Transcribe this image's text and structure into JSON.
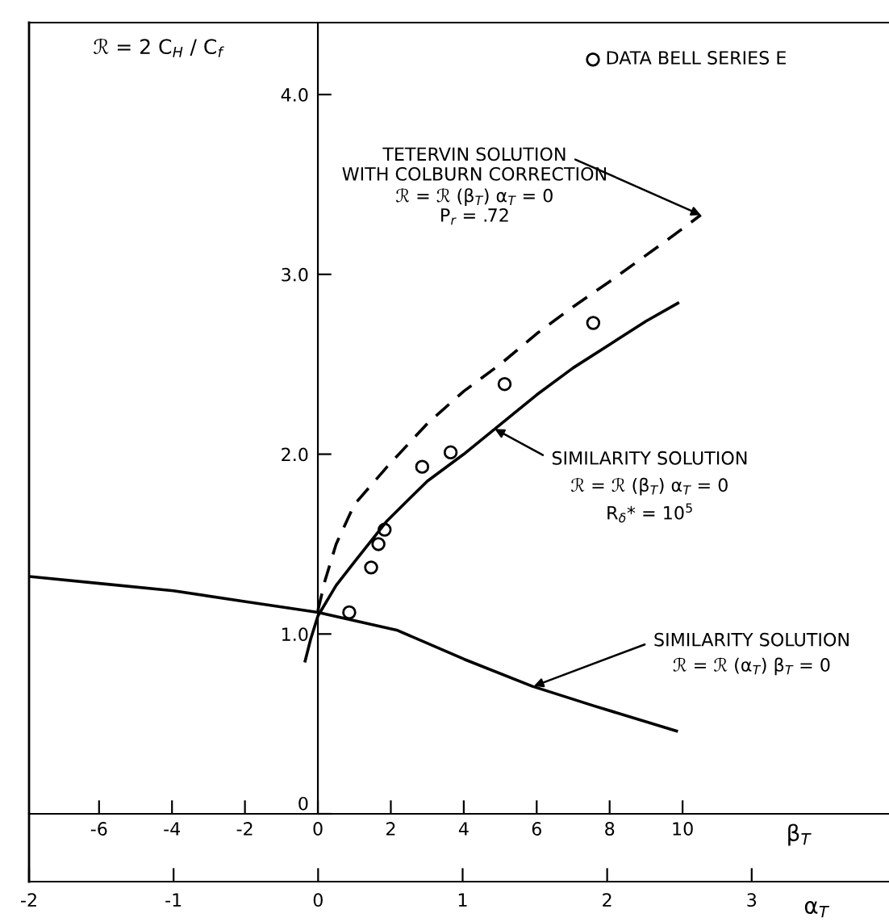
{
  "chart_data": {
    "type": "line",
    "ylabel": "ℛ = 2 C$_{H}$ / C$_{f}$",
    "xlabel": "β$_{T}$",
    "x2label": "α$_{T}$",
    "xlim": [
      -7.92,
      15.66
    ],
    "xticks": [
      -6,
      -4,
      -2,
      0,
      2,
      4,
      6,
      8,
      10
    ],
    "x2lim": [
      -2,
      3.95
    ],
    "x2ticks": [
      -2,
      -1,
      0,
      1,
      2,
      3
    ],
    "ylim": [
      0,
      4.4
    ],
    "yticks": [
      0,
      {
        "value": 1,
        "label": "1.0"
      },
      {
        "value": 2,
        "label": "2.0"
      },
      {
        "value": 3,
        "label": "3.0"
      },
      {
        "value": 4,
        "label": "4.0"
      }
    ],
    "grid": false,
    "legend": "top right",
    "series": [
      {
        "line_style": "dashed",
        "color": "#000000",
        "x": [
          0,
          0.2,
          0.5,
          1,
          1.9,
          3,
          4,
          5,
          6,
          7,
          8,
          9.57,
          10.5
        ],
        "values": [
          1.13,
          1.3,
          1.5,
          1.72,
          1.93,
          2.17,
          2.35,
          2.5,
          2.67,
          2.82,
          2.96,
          3.19,
          3.33
        ]
      },
      {
        "line_style": "solid",
        "color": "#000000",
        "x": [
          -0.35,
          -0.2,
          0,
          0.5,
          1,
          1.9,
          3,
          4,
          4.85,
          6,
          7,
          8,
          9,
          9.87
        ],
        "values": [
          0.85,
          0.97,
          1.1,
          1.27,
          1.4,
          1.63,
          1.85,
          2.0,
          2.14,
          2.33,
          2.48,
          2.61,
          2.74,
          2.84
        ]
      },
      {
        "line_style": "solid",
        "axis": "x2",
        "color": "#000000",
        "x": [
          -2,
          -1.5,
          -1,
          -0.5,
          0,
          0.55,
          1.01,
          1.48,
          1.91,
          2.48
        ],
        "values": [
          1.32,
          1.28,
          1.24,
          1.18,
          1.12,
          1.02,
          0.86,
          0.71,
          0.6,
          0.46
        ]
      },
      {
        "type": "scatter",
        "name": "DATA BELL SERIES E",
        "marker": "circle",
        "color": "#000000",
        "x": [
          0.86,
          1.46,
          1.66,
          1.83,
          2.86,
          3.64,
          5.12,
          7.55
        ],
        "values": [
          1.12,
          1.37,
          1.5,
          1.58,
          1.93,
          2.01,
          2.39,
          2.73
        ]
      }
    ],
    "annotations": [
      {
        "text": "TETERVIN SOLUTION",
        "x": 10.5,
        "y": 3.33
      },
      "WITH COLBURN CORRECTION",
      "ℛ = ℛ (β$_{T}$) α$_{T}$ = 0",
      "P$_{r}$ = .72",
      {
        "text": "SIMILARITY SOLUTION",
        "x": 4.85,
        "y": 2.14
      },
      "ℛ = ℛ (β$_{T}$) α$_{T}$ = 0",
      "R$_{δ}$* = 10$^{5}$",
      {
        "text": "SIMILARITY SOLUTION",
        "x": 5.92,
        "y": 0.71
      },
      "ℛ = ℛ (α$_{T}$) β$_{T}$ = 0"
    ]
  }
}
